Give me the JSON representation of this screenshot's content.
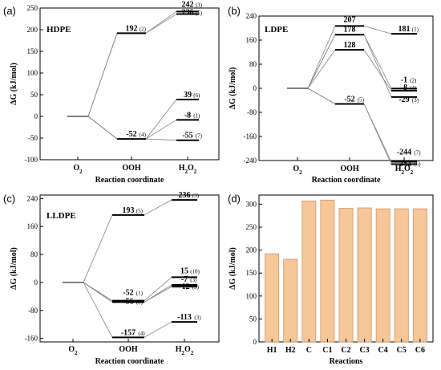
{
  "chart_data": [
    {
      "panel": "(a)",
      "type": "energy_diagram",
      "title": "HDPE",
      "xlabel": "Reaction coordinate",
      "ylabel": "ΔG (kJ/mol)",
      "categories": [
        "O2",
        "OOH",
        "H2O2"
      ],
      "ylim": [
        -100,
        250
      ],
      "yticks": [
        -100,
        -50,
        0,
        50,
        100,
        150,
        200,
        250
      ],
      "levels": [
        {
          "stage": 1,
          "value": 192,
          "count": "(2)"
        },
        {
          "stage": 1,
          "value": -52,
          "count": "(4)"
        },
        {
          "stage": 2,
          "value": 242,
          "count": "(3)"
        },
        {
          "stage": 2,
          "value": 236,
          "count": "(5)"
        },
        {
          "stage": 2,
          "value": 39,
          "count": "(6)"
        },
        {
          "stage": 2,
          "value": -8,
          "count": "(1)"
        },
        {
          "stage": 2,
          "value": -55,
          "count": "(7)"
        }
      ],
      "paths": [
        [
          0,
          192,
          242
        ],
        [
          0,
          192,
          236
        ],
        [
          0,
          -52,
          39
        ],
        [
          0,
          -52,
          -8
        ],
        [
          0,
          -52,
          -55
        ]
      ]
    },
    {
      "panel": "(b)",
      "type": "energy_diagram",
      "title": "LDPE",
      "xlabel": "Reaction coordinate",
      "ylabel": "ΔG (kJ/mol)",
      "categories": [
        "O2",
        "OOH",
        "H2O2"
      ],
      "ylim": [
        -240,
        240
      ],
      "yticks": [
        -240,
        -160,
        -80,
        0,
        80,
        160,
        240
      ],
      "levels": [
        {
          "stage": 1,
          "value": 207,
          "count": ""
        },
        {
          "stage": 1,
          "value": 178,
          "count": ""
        },
        {
          "stage": 1,
          "value": 128,
          "count": ""
        },
        {
          "stage": 1,
          "value": -52,
          "count": "(5)"
        },
        {
          "stage": 2,
          "value": 181,
          "count": "(1)"
        },
        {
          "stage": 2,
          "value": -1,
          "count": "(2)"
        },
        {
          "stage": 2,
          "value": -8,
          "count": "(4)"
        },
        {
          "stage": 2,
          "value": -29,
          "count": "(3)"
        },
        {
          "stage": 2,
          "value": -244,
          "count": "(7)"
        },
        {
          "stage": 2,
          "value": -252,
          "count": "(6)"
        }
      ],
      "paths": [
        [
          0,
          207,
          181
        ],
        [
          0,
          178,
          -1
        ],
        [
          0,
          128,
          -8
        ],
        [
          0,
          178,
          -29
        ],
        [
          0,
          -52,
          -244
        ],
        [
          0,
          -52,
          -252
        ]
      ]
    },
    {
      "panel": "(c)",
      "type": "energy_diagram",
      "title": "LLDPE",
      "xlabel": "Reaction coordinate",
      "ylabel": "ΔG (kJ/mol)",
      "categories": [
        "O2",
        "OOH",
        "H2O2"
      ],
      "ylim": [
        -170,
        250
      ],
      "yticks": [
        -160,
        -80,
        0,
        80,
        160,
        240
      ],
      "levels": [
        {
          "stage": 1,
          "value": 193,
          "count": "(5)"
        },
        {
          "stage": 1,
          "value": -52,
          "count": "(1)"
        },
        {
          "stage": 1,
          "value": -56,
          "count": "(8)"
        },
        {
          "stage": 1,
          "value": -157,
          "count": "(4)"
        },
        {
          "stage": 2,
          "value": 236,
          "count": "(3)"
        },
        {
          "stage": 2,
          "value": 15,
          "count": "(10)"
        },
        {
          "stage": 2,
          "value": -7,
          "count": "(3)"
        },
        {
          "stage": 2,
          "value": -12,
          "count": "(3)"
        },
        {
          "stage": 2,
          "value": -113,
          "count": "(3)"
        }
      ],
      "paths": [
        [
          0,
          193,
          236
        ],
        [
          0,
          -52,
          15
        ],
        [
          0,
          -56,
          -7
        ],
        [
          0,
          -56,
          -12
        ],
        [
          0,
          -157,
          -113
        ]
      ]
    },
    {
      "panel": "(d)",
      "type": "bar",
      "xlabel": "Reactions",
      "ylabel": "ΔG (kJ/mol)",
      "categories": [
        "H1",
        "H2",
        "C",
        "C1",
        "C2",
        "C3",
        "C4",
        "C5",
        "C6"
      ],
      "values": [
        192,
        180,
        307,
        309,
        291,
        292,
        290,
        290,
        290
      ],
      "ylim": [
        0,
        320
      ],
      "yticks": [
        0,
        50,
        100,
        150,
        200,
        250,
        300
      ]
    }
  ]
}
